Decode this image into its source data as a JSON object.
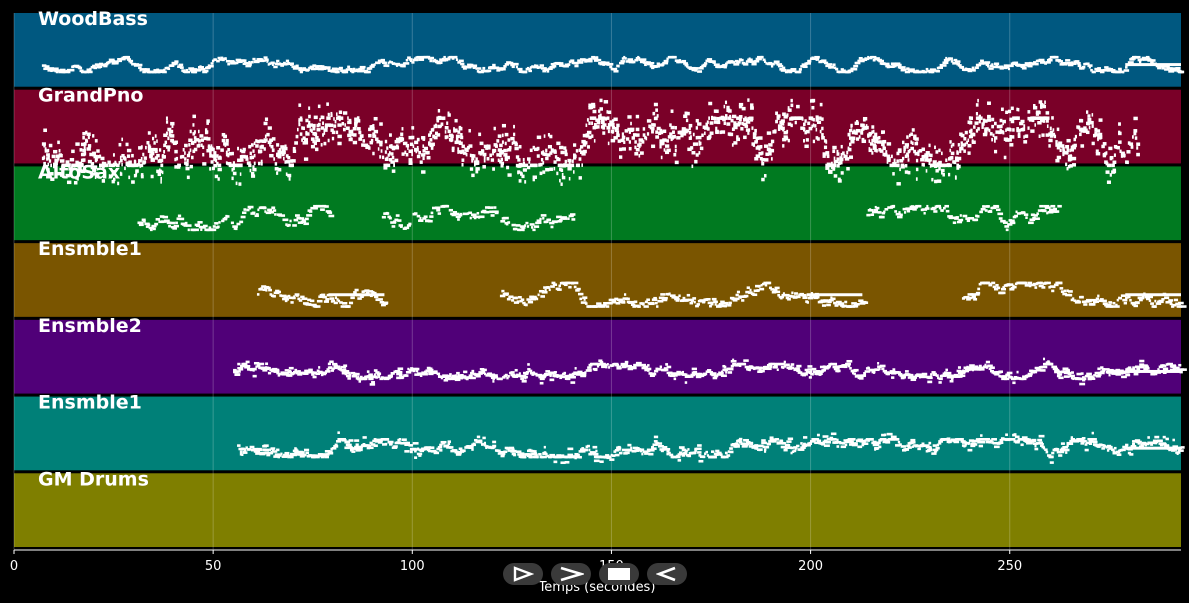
{
  "chart_data": {
    "type": "piano-roll",
    "xlabel": "Temps (secondes)",
    "xlim": [
      0,
      293
    ],
    "xticks": [
      0,
      50,
      100,
      150,
      200,
      250
    ],
    "grid": true,
    "tracks": [
      {
        "name": "WoodBass",
        "color": "#005880",
        "density": 1.0,
        "spread": 0.1,
        "segments": [
          [
            7,
            293
          ]
        ],
        "style": "line"
      },
      {
        "name": "GrandPno",
        "color": "#7a0028",
        "density": 5.0,
        "spread": 0.32,
        "segments": [
          [
            7,
            282
          ]
        ],
        "style": "chords"
      },
      {
        "name": "AltoSax",
        "color": "#007a20",
        "density": 0.9,
        "spread": 0.16,
        "segments": [
          [
            31,
            79
          ],
          [
            92,
            140
          ],
          [
            214,
            262
          ]
        ],
        "style": "melody"
      },
      {
        "name": "Ensmble1",
        "color": "#7a5500",
        "density": 1.5,
        "spread": 0.16,
        "segments": [
          [
            61,
            93
          ],
          [
            122,
            213
          ],
          [
            238,
            293
          ]
        ],
        "style": "sustained"
      },
      {
        "name": "Ensmble2",
        "color": "#500078",
        "density": 2.2,
        "spread": 0.1,
        "segments": [
          [
            55,
            293
          ]
        ],
        "style": "dense"
      },
      {
        "name": "Ensmble1",
        "color": "#008078",
        "density": 2.2,
        "spread": 0.12,
        "segments": [
          [
            56,
            293
          ]
        ],
        "style": "dense"
      },
      {
        "name": "GM Drums",
        "color": "#7f7f00",
        "density": 0,
        "spread": 0,
        "segments": [],
        "style": "none"
      }
    ]
  },
  "controls": [
    {
      "name": "play-icon",
      "kind": "play"
    },
    {
      "name": "forward-icon",
      "kind": "forward"
    },
    {
      "name": "stop-icon",
      "kind": "stop"
    },
    {
      "name": "rewind-icon",
      "kind": "rewind"
    }
  ]
}
